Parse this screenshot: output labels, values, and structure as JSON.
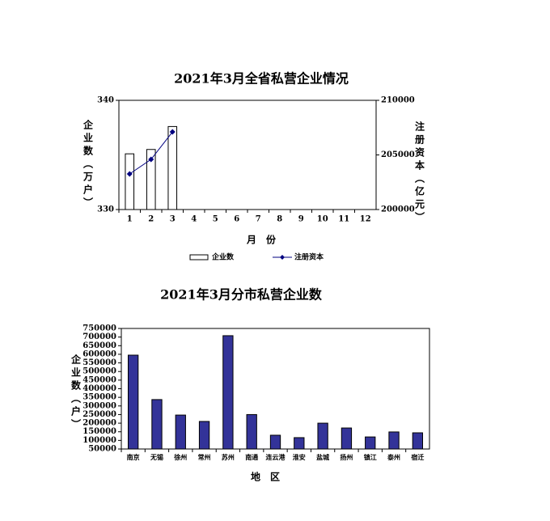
{
  "chart_data": [
    {
      "type": "bar",
      "title": "2021年3月全省私营企业情况",
      "categories": [
        "1",
        "2",
        "3",
        "4",
        "5",
        "6",
        "7",
        "8",
        "9",
        "10",
        "11",
        "12"
      ],
      "series": [
        {
          "name": "企业数",
          "type": "bar",
          "color": "#ffffff",
          "values": [
            335.1,
            335.5,
            337.6,
            null,
            null,
            null,
            null,
            null,
            null,
            null,
            null,
            null
          ]
        },
        {
          "name": "注册资本",
          "type": "line",
          "axis": "y2",
          "color": "#000080",
          "values": [
            203260,
            204590,
            207110,
            null,
            null,
            null,
            null,
            null,
            null,
            null,
            null,
            null
          ]
        }
      ],
      "ylim": [
        330,
        340
      ],
      "yticks": [
        330,
        340
      ],
      "y2lim": [
        200000,
        210000
      ],
      "y2ticks": [
        200000,
        205000,
        210000
      ],
      "y_label": "企业数（万户）",
      "y2_label": "注册资本（亿元）",
      "x_label": "月　份",
      "legend": "bottom",
      "grid": false
    },
    {
      "type": "bar",
      "title": "2021年3月分市私营企业数",
      "categories": [
        "南京",
        "无锡",
        "徐州",
        "常州",
        "苏州",
        "南通",
        "连云港",
        "淮安",
        "盐城",
        "扬州",
        "镇江",
        "泰州",
        "宿迁"
      ],
      "series": [
        {
          "name": "企业数",
          "type": "bar",
          "color": "#333399",
          "values": [
            595000,
            337000,
            247000,
            210000,
            708000,
            250000,
            130000,
            116000,
            200000,
            172000,
            120000,
            149000,
            144000
          ]
        }
      ],
      "ylim": [
        50000,
        750000
      ],
      "yticks": [
        50000,
        100000,
        150000,
        200000,
        250000,
        300000,
        350000,
        400000,
        450000,
        500000,
        550000,
        600000,
        650000,
        700000,
        750000
      ],
      "y_label": "企业数（户）",
      "x_label": "地　区",
      "legend": "none",
      "grid": false
    }
  ]
}
